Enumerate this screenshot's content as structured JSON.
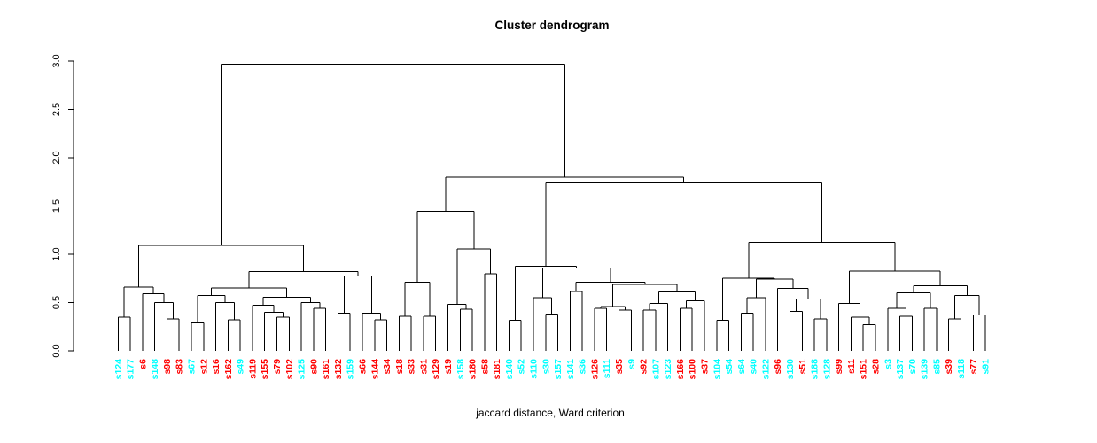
{
  "title": "Cluster dendrogram",
  "caption": "jaccard distance, Ward criterion",
  "colors": {
    "red": "#FF0000",
    "cyan": "#00FFFF",
    "line": "#000000"
  },
  "y_axis": {
    "tick_labels": [
      "0.0",
      "0.5",
      "1.0",
      "1.5",
      "2.0",
      "2.5",
      "3.0"
    ],
    "tick_values": [
      0,
      0.5,
      1,
      1.5,
      2,
      2.5,
      3
    ],
    "range": [
      0,
      3
    ]
  },
  "chart_data": {
    "type": "dendrogram",
    "title": "Cluster dendrogram",
    "xlabel": "jaccard distance, Ward criterion",
    "ylabel": "",
    "ylim": [
      0,
      3
    ],
    "grid": false,
    "legend": "none",
    "leaves": [
      {
        "label": "s124",
        "color": "cyan"
      },
      {
        "label": "s177",
        "color": "cyan"
      },
      {
        "label": "s6",
        "color": "red"
      },
      {
        "label": "s148",
        "color": "cyan"
      },
      {
        "label": "s98",
        "color": "red"
      },
      {
        "label": "s83",
        "color": "red"
      },
      {
        "label": "s67",
        "color": "cyan"
      },
      {
        "label": "s12",
        "color": "red"
      },
      {
        "label": "s16",
        "color": "red"
      },
      {
        "label": "s162",
        "color": "red"
      },
      {
        "label": "s49",
        "color": "cyan"
      },
      {
        "label": "s119",
        "color": "red"
      },
      {
        "label": "s155",
        "color": "red"
      },
      {
        "label": "s79",
        "color": "red"
      },
      {
        "label": "s102",
        "color": "red"
      },
      {
        "label": "s125",
        "color": "cyan"
      },
      {
        "label": "s90",
        "color": "red"
      },
      {
        "label": "s161",
        "color": "red"
      },
      {
        "label": "s132",
        "color": "red"
      },
      {
        "label": "s159",
        "color": "cyan"
      },
      {
        "label": "s66",
        "color": "red"
      },
      {
        "label": "s144",
        "color": "red"
      },
      {
        "label": "s34",
        "color": "red"
      },
      {
        "label": "s18",
        "color": "red"
      },
      {
        "label": "s33",
        "color": "red"
      },
      {
        "label": "s31",
        "color": "red"
      },
      {
        "label": "s129",
        "color": "red"
      },
      {
        "label": "s19",
        "color": "red"
      },
      {
        "label": "s158",
        "color": "cyan"
      },
      {
        "label": "s180",
        "color": "red"
      },
      {
        "label": "s58",
        "color": "red"
      },
      {
        "label": "s181",
        "color": "red"
      },
      {
        "label": "s140",
        "color": "cyan"
      },
      {
        "label": "s52",
        "color": "cyan"
      },
      {
        "label": "s110",
        "color": "cyan"
      },
      {
        "label": "s30",
        "color": "cyan"
      },
      {
        "label": "s157",
        "color": "cyan"
      },
      {
        "label": "s141",
        "color": "cyan"
      },
      {
        "label": "s36",
        "color": "cyan"
      },
      {
        "label": "s126",
        "color": "red"
      },
      {
        "label": "s111",
        "color": "cyan"
      },
      {
        "label": "s35",
        "color": "red"
      },
      {
        "label": "s9",
        "color": "cyan"
      },
      {
        "label": "s92",
        "color": "red"
      },
      {
        "label": "s107",
        "color": "cyan"
      },
      {
        "label": "s123",
        "color": "cyan"
      },
      {
        "label": "s166",
        "color": "red"
      },
      {
        "label": "s100",
        "color": "red"
      },
      {
        "label": "s37",
        "color": "red"
      },
      {
        "label": "s104",
        "color": "cyan"
      },
      {
        "label": "s54",
        "color": "cyan"
      },
      {
        "label": "s64",
        "color": "cyan"
      },
      {
        "label": "s40",
        "color": "cyan"
      },
      {
        "label": "s122",
        "color": "cyan"
      },
      {
        "label": "s96",
        "color": "red"
      },
      {
        "label": "s130",
        "color": "cyan"
      },
      {
        "label": "s51",
        "color": "red"
      },
      {
        "label": "s188",
        "color": "cyan"
      },
      {
        "label": "s128",
        "color": "cyan"
      },
      {
        "label": "s99",
        "color": "red"
      },
      {
        "label": "s11",
        "color": "red"
      },
      {
        "label": "s151",
        "color": "red"
      },
      {
        "label": "s28",
        "color": "red"
      },
      {
        "label": "s3",
        "color": "cyan"
      },
      {
        "label": "s137",
        "color": "cyan"
      },
      {
        "label": "s70",
        "color": "cyan"
      },
      {
        "label": "s139",
        "color": "cyan"
      },
      {
        "label": "s85",
        "color": "cyan"
      },
      {
        "label": "s39",
        "color": "red"
      },
      {
        "label": "s118",
        "color": "cyan"
      },
      {
        "label": "s77",
        "color": "red"
      },
      {
        "label": "s91",
        "color": "cyan"
      }
    ],
    "tree": {
      "h": 2.97,
      "c": [
        {
          "h": 1.09,
          "c": [
            {
              "h": 0.66,
              "c": [
                {
                  "h": 0.35,
                  "c": [
                    "s124",
                    "s177"
                  ]
                },
                {
                  "h": 0.59,
                  "c": [
                    "s6",
                    {
                      "h": 0.5,
                      "c": [
                        "s148",
                        {
                          "h": 0.33,
                          "c": [
                            "s98",
                            "s83"
                          ]
                        }
                      ]
                    }
                  ]
                }
              ]
            },
            {
              "h": 0.82,
              "c": [
                {
                  "h": 0.65,
                  "c": [
                    {
                      "h": 0.575,
                      "c": [
                        {
                          "h": 0.3,
                          "c": [
                            "s67",
                            "s12"
                          ]
                        },
                        {
                          "h": 0.5,
                          "c": [
                            "s16",
                            {
                              "h": 0.32,
                              "c": [
                                "s162",
                                "s49"
                              ]
                            }
                          ]
                        }
                      ]
                    },
                    {
                      "h": 0.553,
                      "c": [
                        {
                          "h": 0.474,
                          "c": [
                            "s119",
                            {
                              "h": 0.4,
                              "c": [
                                "s155",
                                {
                                  "h": 0.35,
                                  "c": [
                                    "s79",
                                    "s102"
                                  ]
                                }
                              ]
                            }
                          ]
                        },
                        {
                          "h": 0.5,
                          "c": [
                            "s125",
                            {
                              "h": 0.44,
                              "c": [
                                "s90",
                                "s161"
                              ]
                            }
                          ]
                        }
                      ]
                    }
                  ]
                },
                {
                  "h": 0.773,
                  "c": [
                    {
                      "h": 0.39,
                      "c": [
                        "s132",
                        "s159"
                      ]
                    },
                    {
                      "h": 0.39,
                      "c": [
                        "s66",
                        {
                          "h": 0.32,
                          "c": [
                            "s144",
                            "s34"
                          ]
                        }
                      ]
                    }
                  ]
                }
              ]
            }
          ]
        },
        {
          "h": 1.8,
          "c": [
            {
              "h": 1.447,
              "c": [
                {
                  "h": 0.713,
                  "c": [
                    {
                      "h": 0.36,
                      "c": [
                        "s18",
                        "s33"
                      ]
                    },
                    {
                      "h": 0.36,
                      "c": [
                        "s31",
                        "s129"
                      ]
                    }
                  ]
                },
                {
                  "h": 1.055,
                  "c": [
                    {
                      "h": 0.48,
                      "c": [
                        "s19",
                        {
                          "h": 0.43,
                          "c": [
                            "s158",
                            "s180"
                          ]
                        }
                      ]
                    },
                    {
                      "h": 0.8,
                      "c": [
                        "s58",
                        "s181"
                      ]
                    }
                  ]
                }
              ]
            },
            {
              "h": 1.75,
              "c": [
                {
                  "h": 0.875,
                  "c": [
                    {
                      "h": 0.315,
                      "c": [
                        "s140",
                        "s52"
                      ]
                    },
                    {
                      "h": 0.86,
                      "c": [
                        {
                          "h": 0.55,
                          "c": [
                            "s110",
                            {
                              "h": 0.38,
                              "c": [
                                "s30",
                                "s157"
                              ]
                            }
                          ]
                        },
                        {
                          "h": 0.71,
                          "c": [
                            {
                              "h": 0.615,
                              "c": [
                                "s141",
                                "s36"
                              ]
                            },
                            {
                              "h": 0.69,
                              "c": [
                                {
                                  "h": 0.46,
                                  "c": [
                                    {
                                      "h": 0.44,
                                      "c": [
                                        "s126",
                                        "s111"
                                      ]
                                    },
                                    {
                                      "h": 0.42,
                                      "c": [
                                        "s35",
                                        "s9"
                                      ]
                                    }
                                  ]
                                },
                                {
                                  "h": 0.61,
                                  "c": [
                                    {
                                      "h": 0.49,
                                      "c": [
                                        {
                                          "h": 0.42,
                                          "c": [
                                            "s92",
                                            "s107"
                                          ]
                                        },
                                        "s123"
                                      ]
                                    },
                                    {
                                      "h": 0.52,
                                      "c": [
                                        {
                                          "h": 0.44,
                                          "c": [
                                            "s166",
                                            "s100"
                                          ]
                                        },
                                        "s37"
                                      ]
                                    }
                                  ]
                                }
                              ]
                            }
                          ]
                        }
                      ]
                    }
                  ]
                },
                {
                  "h": 1.125,
                  "c": [
                    {
                      "h": 0.752,
                      "c": [
                        {
                          "h": 0.315,
                          "c": [
                            "s104",
                            "s54"
                          ]
                        },
                        {
                          "h": 0.743,
                          "c": [
                            {
                              "h": 0.55,
                              "c": [
                                {
                                  "h": 0.39,
                                  "c": [
                                    "s64",
                                    "s40"
                                  ]
                                },
                                "s122"
                              ]
                            },
                            {
                              "h": 0.645,
                              "c": [
                                "s96",
                                {
                                  "h": 0.535,
                                  "c": [
                                    {
                                      "h": 0.41,
                                      "c": [
                                        "s130",
                                        "s51"
                                      ]
                                    },
                                    {
                                      "h": 0.33,
                                      "c": [
                                        "s188",
                                        "s128"
                                      ]
                                    }
                                  ]
                                }
                              ]
                            }
                          ]
                        }
                      ]
                    },
                    {
                      "h": 0.826,
                      "c": [
                        {
                          "h": 0.49,
                          "c": [
                            "s99",
                            {
                              "h": 0.35,
                              "c": [
                                "s11",
                                {
                                  "h": 0.27,
                                  "c": [
                                    "s151",
                                    "s28"
                                  ]
                                }
                              ]
                            }
                          ]
                        },
                        {
                          "h": 0.673,
                          "c": [
                            {
                              "h": 0.6,
                              "c": [
                                {
                                  "h": 0.44,
                                  "c": [
                                    "s3",
                                    {
                                      "h": 0.36,
                                      "c": [
                                        "s137",
                                        "s70"
                                      ]
                                    }
                                  ]
                                },
                                {
                                  "h": 0.44,
                                  "c": [
                                    "s139",
                                    "s85"
                                  ]
                                }
                              ]
                            },
                            {
                              "h": 0.575,
                              "c": [
                                {
                                  "h": 0.33,
                                  "c": [
                                    "s39",
                                    "s118"
                                  ]
                                },
                                {
                                  "h": 0.37,
                                  "c": [
                                    "s77",
                                    "s91"
                                  ]
                                }
                              ]
                            }
                          ]
                        }
                      ]
                    }
                  ]
                }
              ]
            }
          ]
        }
      ]
    }
  }
}
